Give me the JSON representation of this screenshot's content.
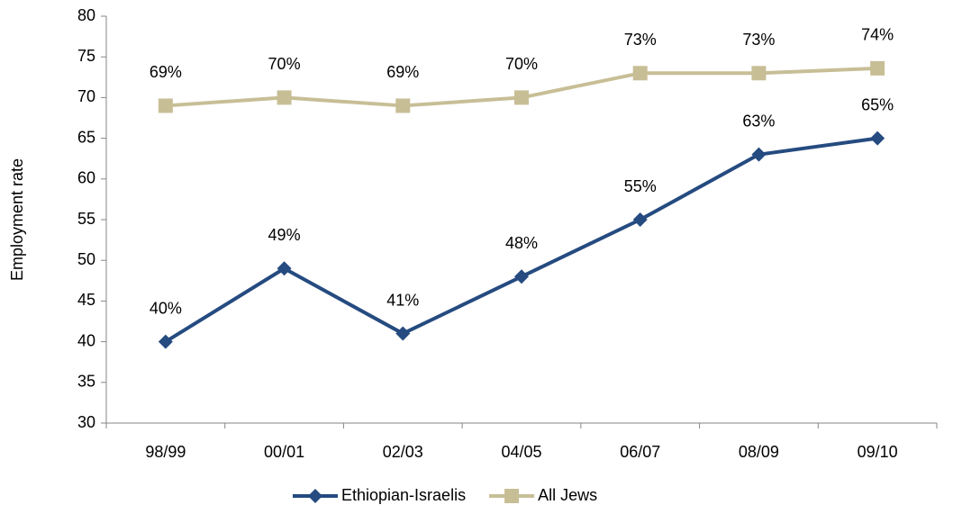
{
  "chart_data": {
    "type": "line",
    "y_label": "Employment rate",
    "categories": [
      "98/99",
      "00/01",
      "02/03",
      "04/05",
      "06/07",
      "08/09",
      "09/10"
    ],
    "series": [
      {
        "name": "Ethiopian-Israelis",
        "color": "#254b80",
        "marker": "diamond",
        "values": [
          40,
          49,
          41,
          48,
          55,
          63,
          65
        ],
        "value_labels": [
          "40%",
          "49%",
          "41%",
          "48%",
          "55%",
          "63%",
          "65%"
        ]
      },
      {
        "name": "All Jews",
        "color": "#c8be96",
        "marker": "square",
        "values": [
          69,
          70,
          69,
          70,
          73,
          73,
          73.6
        ],
        "value_labels": [
          "69%",
          "70%",
          "69%",
          "70%",
          "73%",
          "73%",
          "74%"
        ]
      }
    ],
    "ylim": [
      30,
      80
    ],
    "yticks": [
      30,
      35,
      40,
      45,
      50,
      55,
      60,
      65,
      70,
      75,
      80
    ],
    "grid": false,
    "legend": "bottom"
  }
}
